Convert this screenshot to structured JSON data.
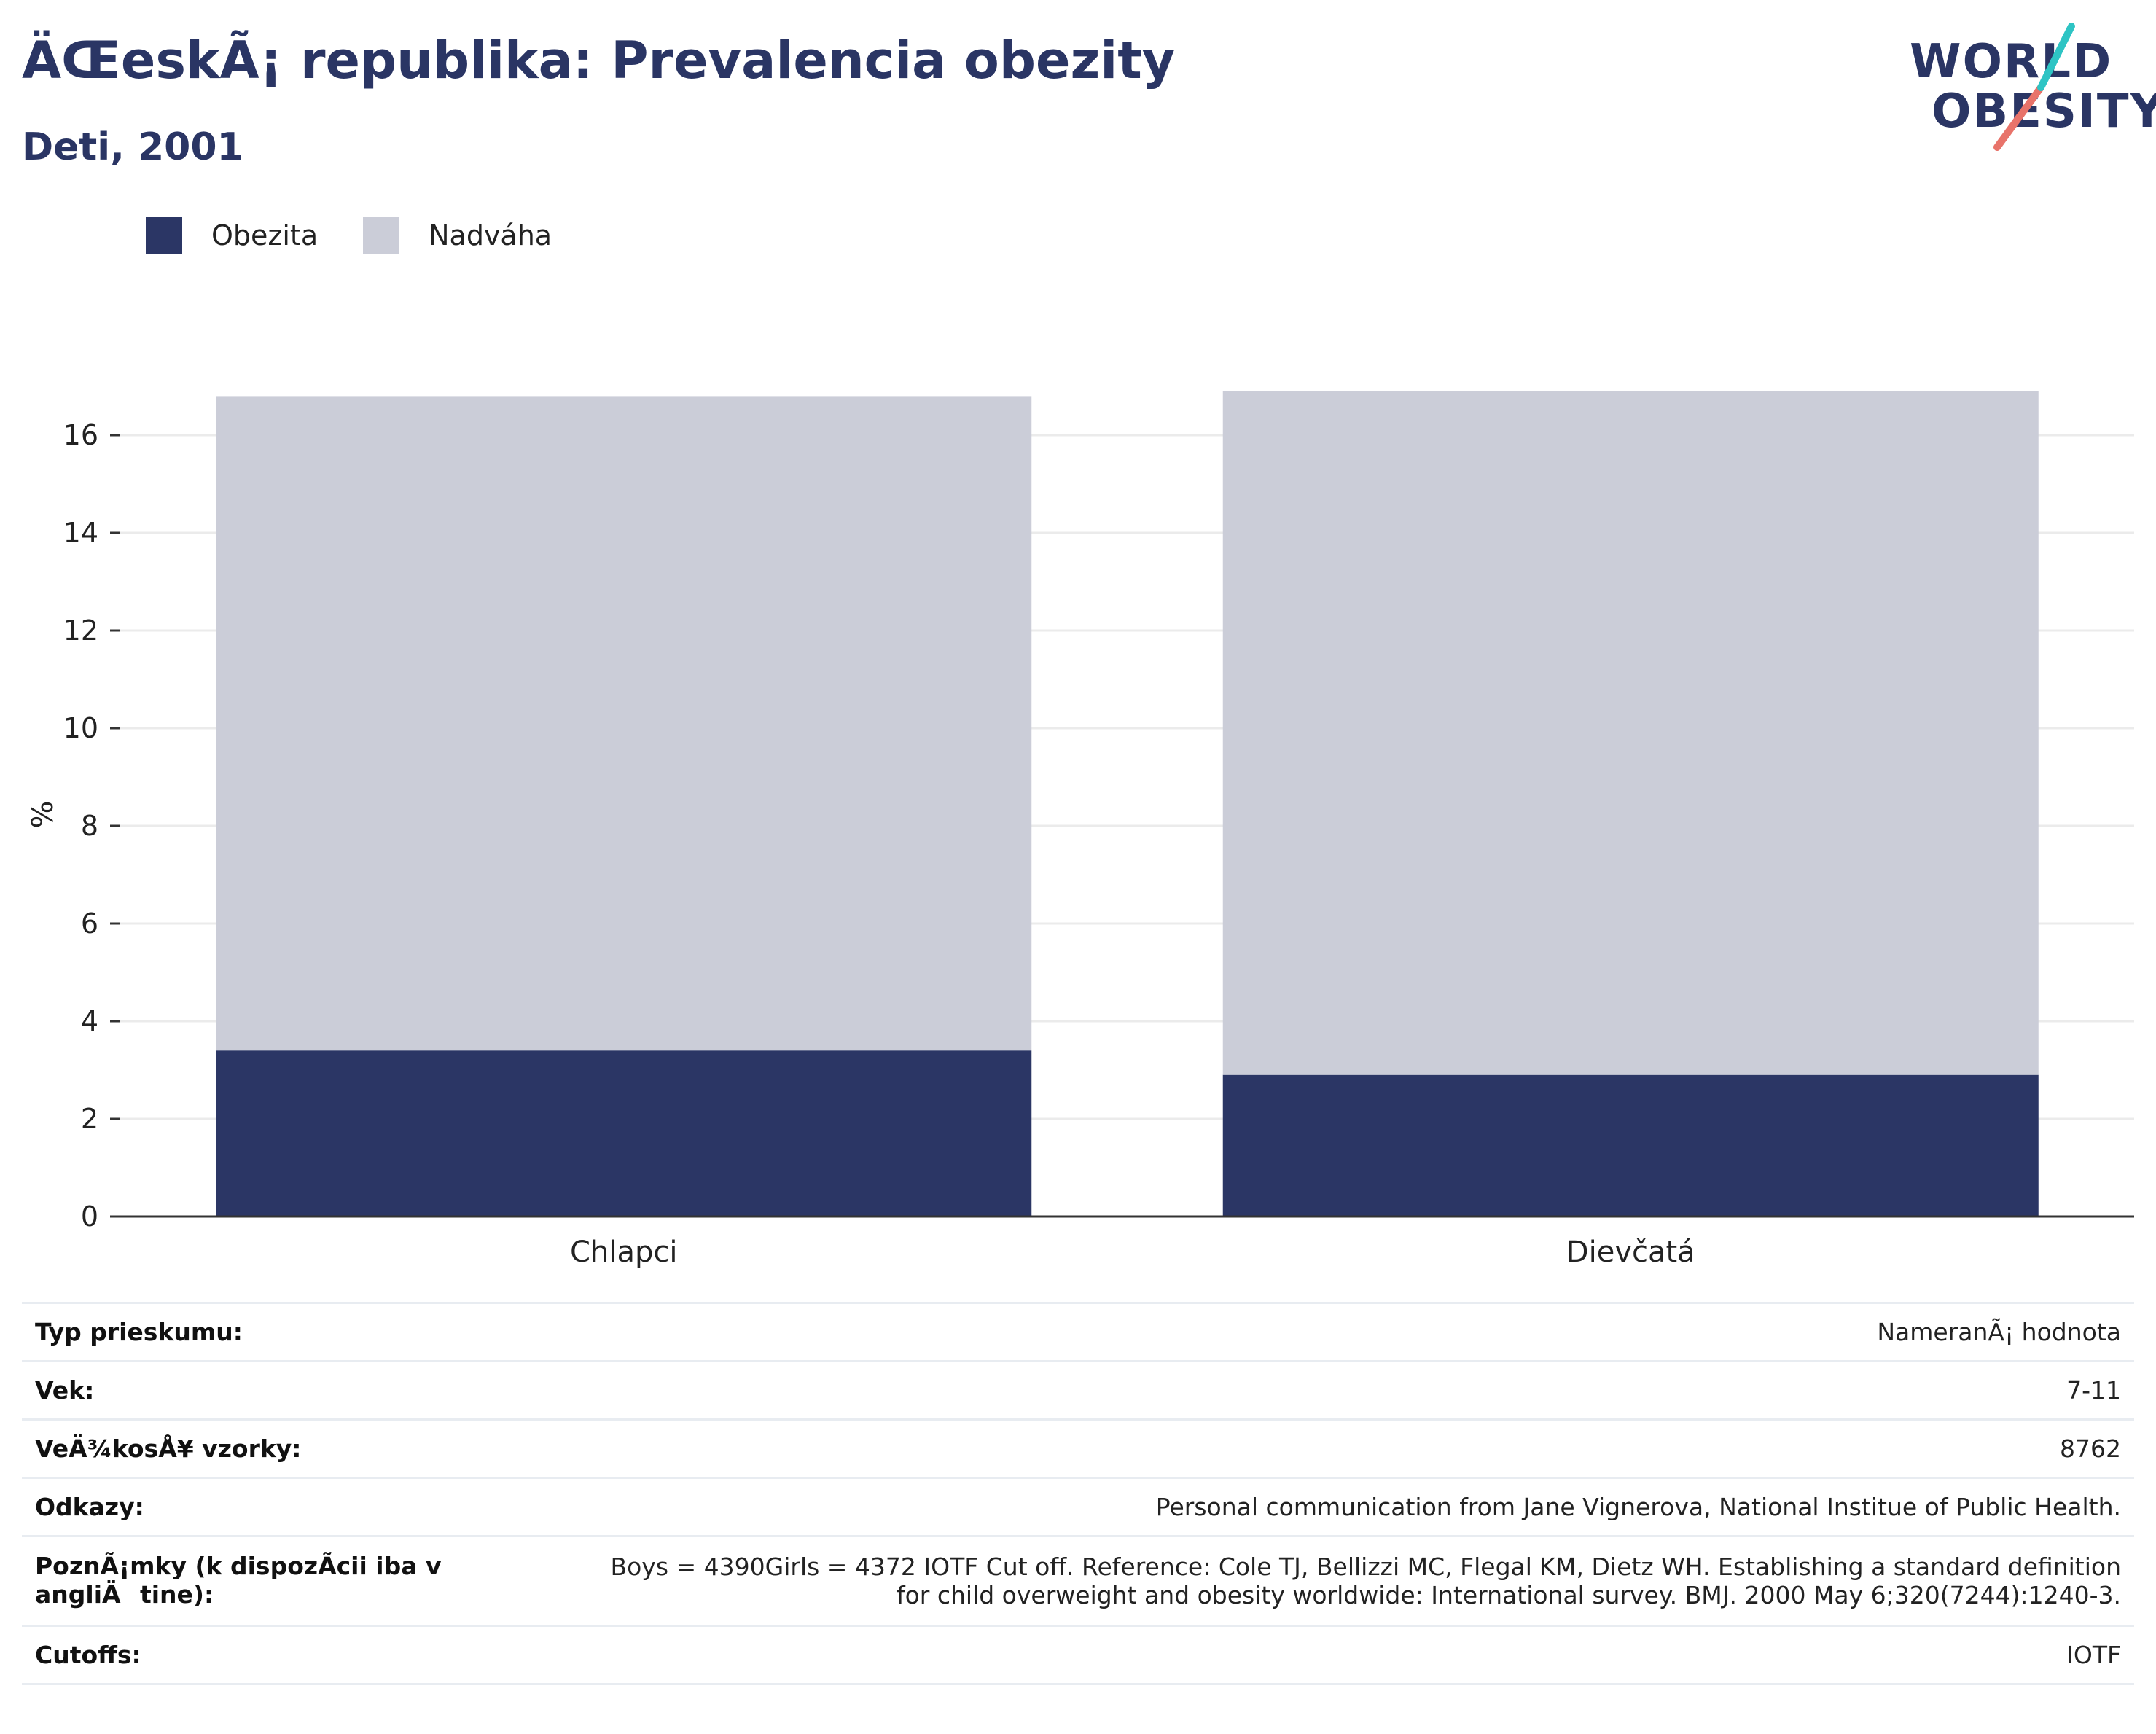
{
  "header": {
    "title": "ÄŒeskÃ¡ republika: Prevalencia obezity",
    "subtitle": "Deti, 2001"
  },
  "logo": {
    "line1": "WORLD",
    "line2": "OBESITY"
  },
  "colors": {
    "obezita": "#2b3665",
    "nadvaha": "#cbcdd8",
    "text_primary": "#2a3564",
    "logo_teal": "#2ec4c4",
    "logo_coral": "#e8736a"
  },
  "legend": [
    {
      "label": "Obezita",
      "color": "#2b3665"
    },
    {
      "label": "Nadváha",
      "color": "#cbcdd8"
    }
  ],
  "chart_data": {
    "type": "bar",
    "stacked": true,
    "categories": [
      "Chlapci",
      "Dievčatá"
    ],
    "series": [
      {
        "name": "Obezita",
        "values": [
          3.4,
          2.9
        ]
      },
      {
        "name": "Nadváha",
        "values": [
          13.4,
          14.0
        ]
      }
    ],
    "ylabel": "%",
    "ylim": [
      0,
      17
    ],
    "yticks": [
      0,
      2,
      4,
      6,
      8,
      10,
      12,
      14,
      16
    ],
    "grid": true,
    "legend_position": "top-left"
  },
  "info": [
    {
      "key": "Typ prieskumu:",
      "value": "NameranÃ¡ hodnota"
    },
    {
      "key": "Vek:",
      "value": "7-11"
    },
    {
      "key": "VeÄ¾kosÅ¥ vzorky:",
      "value": "8762"
    },
    {
      "key": "Odkazy:",
      "value": "Personal communication from Jane Vignerova, National Institue of Public Health."
    },
    {
      "key": "PoznÃ¡mky (k dispozÃcii iba v angliÄtine):",
      "value": "Boys = 4390Girls = 4372 IOTF Cut off. Reference: Cole TJ, Bellizzi MC, Flegal KM, Dietz WH. Establishing a standard definition for child overweight and obesity worldwide: International survey. BMJ. 2000 May 6;320(7244):1240-3."
    },
    {
      "key": "Cutoffs:",
      "value": "IOTF"
    }
  ]
}
